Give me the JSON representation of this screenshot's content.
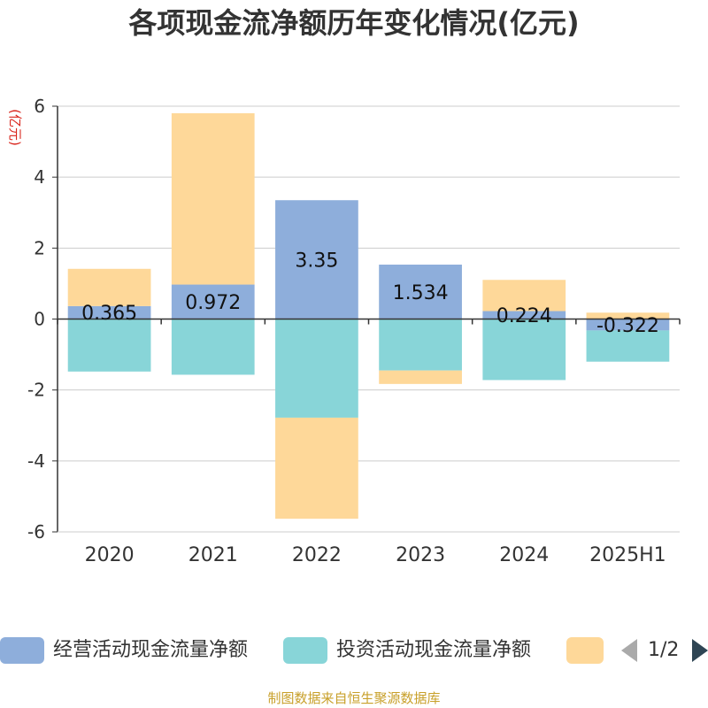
{
  "title": "各项现金流净额历年变化情况(亿元)",
  "source": "制图数据来自恒生聚源数据库",
  "legend": {
    "items": [
      {
        "label": "经营活动现金流量净额",
        "color": "#8eaedb"
      },
      {
        "label": "投资活动现金流量净额",
        "color": "#88d5d8"
      },
      {
        "label": "",
        "color": "#fed899"
      }
    ],
    "page": "1/2"
  },
  "chart_data": {
    "type": "bar",
    "stacked": true,
    "ylabel": "(亿元)",
    "ylim": [
      -6,
      6
    ],
    "yticks": [
      -6,
      -4,
      -2,
      0,
      2,
      4,
      6
    ],
    "grid": true,
    "legend_position": "bottom",
    "categories": [
      "2020",
      "2021",
      "2022",
      "2023",
      "2024",
      "2025H1"
    ],
    "series": [
      {
        "name": "经营活动现金流量净额",
        "color": "#8eaedb",
        "values": [
          0.365,
          0.972,
          3.35,
          1.534,
          0.224,
          -0.322
        ],
        "labels": [
          "0.365",
          "0.972",
          "3.35",
          "1.534",
          "0.224",
          "-0.322"
        ]
      },
      {
        "name": "投资活动现金流量净额",
        "color": "#88d5d8",
        "values": [
          -1.48,
          -1.57,
          -2.78,
          -1.45,
          -1.72,
          -0.88
        ]
      },
      {
        "color": "#fed899",
        "values": [
          1.05,
          4.83,
          -2.85,
          -0.38,
          0.88,
          0.18
        ]
      }
    ]
  }
}
